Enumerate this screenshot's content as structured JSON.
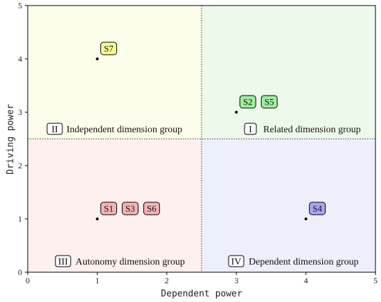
{
  "chart_data": {
    "type": "scatter",
    "xlabel": "Dependent power",
    "ylabel": "Driving power",
    "xlim": [
      0,
      5
    ],
    "ylim": [
      0,
      5
    ],
    "xticks": [
      "0",
      "1",
      "2",
      "3",
      "4",
      "5"
    ],
    "yticks": [
      "0",
      "1",
      "2",
      "3",
      "4",
      "5"
    ],
    "divider_x": 2.5,
    "divider_y": 2.5,
    "grid": false,
    "quadrants": [
      {
        "id": "I",
        "name": "Related dimension group",
        "color": "#edfaeb"
      },
      {
        "id": "II",
        "name": "Independent dimension group",
        "color": "#fdfdec"
      },
      {
        "id": "III",
        "name": "Autonomy dimension group",
        "color": "#fdf0ee"
      },
      {
        "id": "IV",
        "name": "Dependent dimension group",
        "color": "#efeffc"
      }
    ],
    "points": [
      {
        "x": 1,
        "y": 4,
        "labels": [
          "S7"
        ],
        "color": "#fafa96"
      },
      {
        "x": 3,
        "y": 3,
        "labels": [
          "S2",
          "S5"
        ],
        "color": "#9df09d"
      },
      {
        "x": 1,
        "y": 1,
        "labels": [
          "S1",
          "S3",
          "S6"
        ],
        "color": "#f5b3b3"
      },
      {
        "x": 4,
        "y": 1,
        "labels": [
          "S4"
        ],
        "color": "#a6a6f3"
      }
    ]
  }
}
